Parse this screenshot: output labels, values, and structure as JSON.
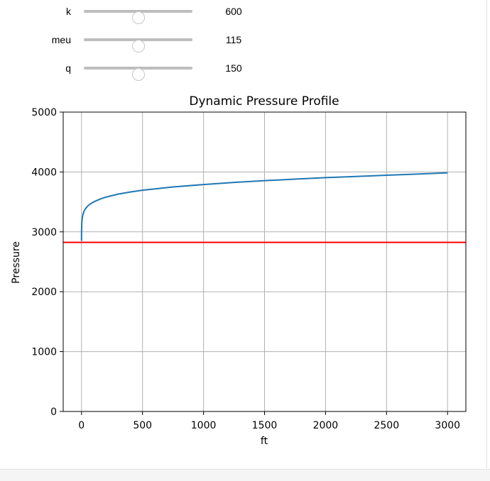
{
  "controls": [
    {
      "label": "k",
      "value": "600",
      "position": 0.5
    },
    {
      "label": "meu",
      "value": "115",
      "position": 0.5
    },
    {
      "label": "q",
      "value": "150",
      "position": 0.5
    }
  ],
  "chart_data": {
    "type": "line",
    "title": "Dynamic Pressure Profile",
    "xlabel": "ft",
    "ylabel": "Pressure",
    "xlim": [
      -150,
      3150
    ],
    "ylim": [
      0,
      5000
    ],
    "xticks": [
      0,
      500,
      1000,
      1500,
      2000,
      2500,
      3000
    ],
    "yticks": [
      0,
      1000,
      2000,
      3000,
      4000,
      5000
    ],
    "grid": true,
    "series": [
      {
        "color": "#1f77b4",
        "x": [
          0,
          0.5,
          1,
          2,
          3,
          5,
          10,
          20,
          30,
          50,
          75,
          100,
          150,
          200,
          300,
          400,
          500,
          750,
          1000,
          1250,
          1500,
          1750,
          2000,
          2250,
          2500,
          2750,
          3000
        ],
        "y": [
          2850,
          3000,
          3060,
          3125,
          3165,
          3210,
          3275,
          3340,
          3380,
          3430,
          3470,
          3500,
          3545,
          3580,
          3630,
          3665,
          3695,
          3750,
          3790,
          3825,
          3855,
          3880,
          3905,
          3925,
          3945,
          3965,
          3985
        ]
      },
      {
        "color": "#ff0000",
        "x": [
          -150,
          3150
        ],
        "y": [
          2825,
          2825
        ]
      }
    ]
  }
}
